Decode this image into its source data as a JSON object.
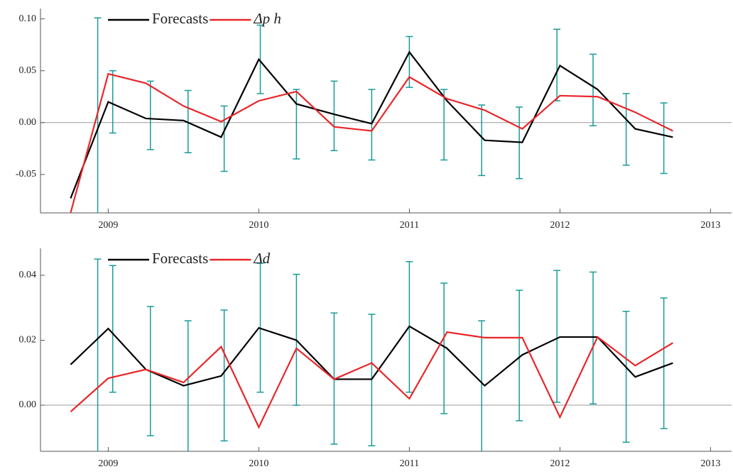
{
  "chart_data": [
    {
      "type": "line",
      "x": [
        2008.75,
        2009.0,
        2009.25,
        2009.5,
        2009.75,
        2010.0,
        2010.25,
        2010.5,
        2010.75,
        2011.0,
        2011.25,
        2011.5,
        2011.75,
        2012.0,
        2012.25,
        2012.5,
        2012.75
      ],
      "series": [
        {
          "name": "Forecasts",
          "color": "#000000",
          "values": [
            -0.073,
            0.02,
            0.004,
            0.002,
            -0.014,
            0.061,
            0.018,
            0.008,
            -0.001,
            0.068,
            0.021,
            -0.017,
            -0.019,
            0.055,
            0.032,
            -0.006,
            -0.014
          ]
        },
        {
          "name": "Δp h",
          "color": "#e8262a",
          "values": [
            -0.087,
            0.047,
            0.038,
            0.016,
            0.001,
            0.021,
            0.03,
            -0.004,
            -0.008,
            0.044,
            0.023,
            0.012,
            -0.006,
            0.026,
            0.025,
            0.01,
            -0.008
          ]
        }
      ],
      "errorbars": {
        "color": "#1a9a9a",
        "x": [
          2008.93,
          2009.03,
          2009.28,
          2009.53,
          2009.77,
          2010.01,
          2010.25,
          2010.5,
          2010.75,
          2011.0,
          2011.23,
          2011.48,
          2011.73,
          2011.98,
          2012.22,
          2012.44,
          2012.69
        ],
        "low": [
          -0.087,
          -0.01,
          -0.026,
          -0.029,
          -0.047,
          0.028,
          -0.035,
          -0.027,
          -0.036,
          0.034,
          -0.036,
          -0.051,
          -0.054,
          0.021,
          -0.003,
          -0.041,
          -0.049
        ],
        "high": [
          0.101,
          0.05,
          0.04,
          0.031,
          0.016,
          0.094,
          0.032,
          0.04,
          0.032,
          0.083,
          0.032,
          0.017,
          0.015,
          0.09,
          0.066,
          0.028,
          0.019
        ]
      },
      "xlim": [
        2008.55,
        2013.14
      ],
      "xticks": [
        2009,
        2010,
        2011,
        2012,
        2013
      ],
      "ylim": [
        -0.087,
        0.11
      ],
      "yticks": [
        {
          "value": 0.1,
          "label": "0.10"
        },
        0.05,
        {
          "value": 0,
          "label": "0.00"
        },
        -0.05
      ],
      "legend": "top-left"
    },
    {
      "type": "line",
      "x": [
        2008.75,
        2009.0,
        2009.25,
        2009.5,
        2009.75,
        2010.0,
        2010.25,
        2010.5,
        2010.75,
        2011.0,
        2011.25,
        2011.5,
        2011.75,
        2012.0,
        2012.25,
        2012.5,
        2012.75
      ],
      "series": [
        {
          "name": "Forecasts",
          "color": "#000000",
          "values": [
            0.0125,
            0.0236,
            0.011,
            0.006,
            0.009,
            0.0238,
            0.02,
            0.008,
            0.008,
            0.0243,
            0.0175,
            0.006,
            0.0155,
            0.021,
            0.021,
            0.0087,
            0.013
          ]
        },
        {
          "name": "Δd",
          "color": "#e8262a",
          "values": [
            -0.002,
            0.0083,
            0.011,
            0.007,
            0.018,
            -0.0068,
            0.0175,
            0.008,
            0.013,
            0.002,
            0.0225,
            0.0208,
            0.0208,
            -0.0037,
            0.021,
            0.0122,
            0.0192
          ]
        }
      ],
      "errorbars": {
        "color": "#1a9a9a",
        "x": [
          2008.93,
          2009.03,
          2009.28,
          2009.53,
          2009.77,
          2010.01,
          2010.25,
          2010.5,
          2010.75,
          2011.0,
          2011.23,
          2011.48,
          2011.73,
          2011.98,
          2012.22,
          2012.44,
          2012.69
        ],
        "low": [
          -0.0142,
          0.004,
          -0.0094,
          -0.0142,
          -0.011,
          0.004,
          0.0,
          -0.012,
          -0.0125,
          0.004,
          -0.0026,
          -0.0142,
          -0.0048,
          0.0009,
          0.0004,
          -0.0114,
          -0.0072
        ],
        "high": [
          0.045,
          0.043,
          0.0304,
          0.026,
          0.0293,
          0.0437,
          0.0403,
          0.0284,
          0.028,
          0.0442,
          0.0376,
          0.026,
          0.0354,
          0.0415,
          0.041,
          0.0289,
          0.033
        ]
      },
      "xlim": [
        2008.55,
        2013.14
      ],
      "xticks": [
        2009,
        2010,
        2011,
        2012,
        2013
      ],
      "ylim": [
        -0.0142,
        0.0483
      ],
      "yticks": [
        0.04,
        0.02,
        {
          "value": 0,
          "label": "0.00"
        }
      ],
      "legend": "top-left"
    }
  ]
}
